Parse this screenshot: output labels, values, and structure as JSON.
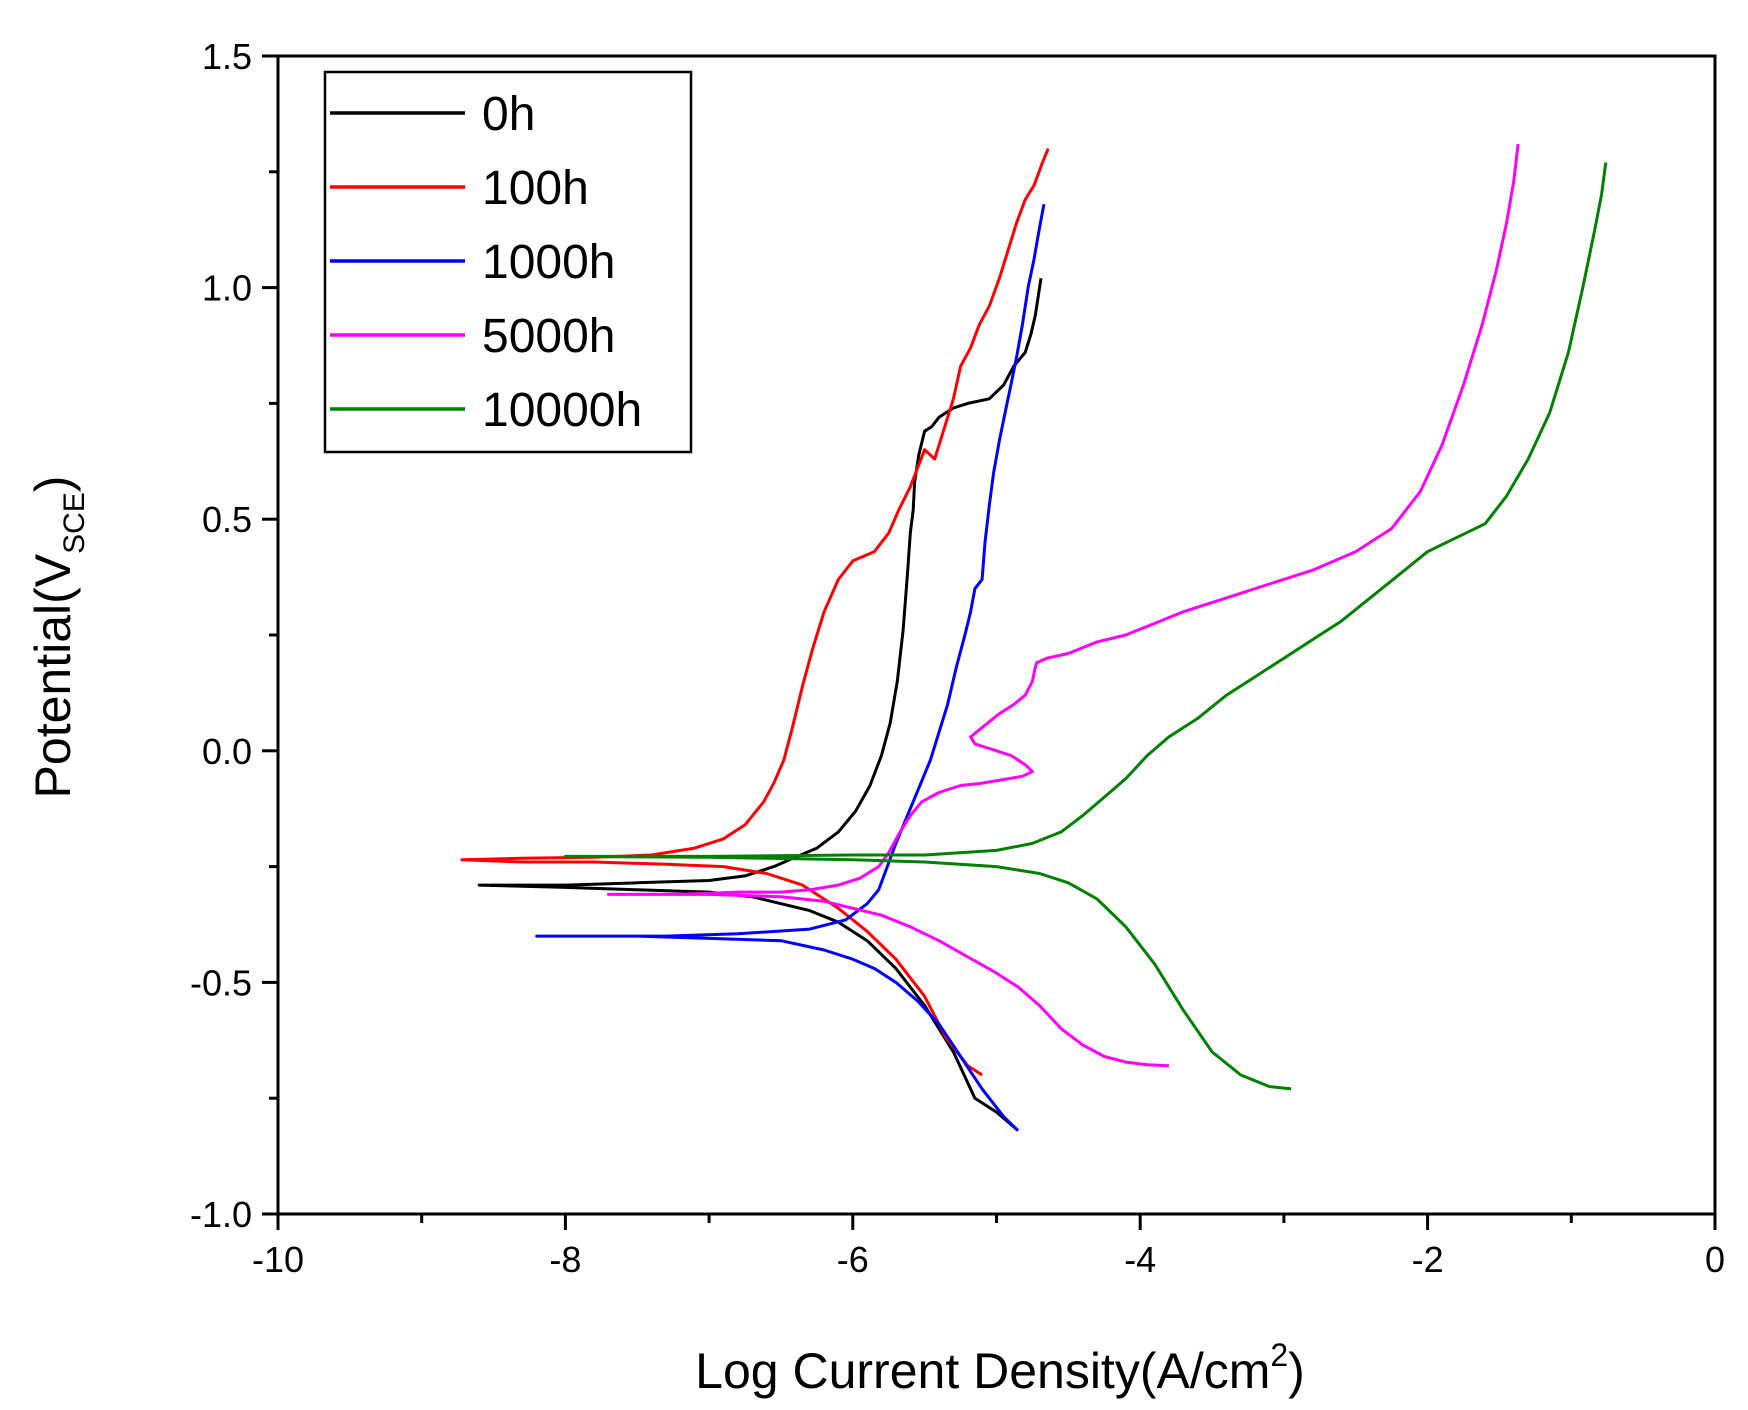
{
  "chart_data": {
    "type": "line",
    "title": "",
    "xlabel": "Log Current Density(A/cm",
    "xlabel_sup": "2",
    "xlabel_end": ")",
    "ylabel": "Potential(V",
    "ylabel_sub": "SCE",
    "ylabel_end": ")",
    "xlim": [
      -10,
      0
    ],
    "ylim": [
      -1.0,
      1.5
    ],
    "xticks": [
      -10,
      -8,
      -6,
      -4,
      -2,
      0
    ],
    "xtick_labels": [
      "-10",
      "-8",
      "-6",
      "-4",
      "-2",
      "0"
    ],
    "xminor": [
      -9,
      -7,
      -5,
      -3,
      -1
    ],
    "yticks": [
      -1.0,
      -0.5,
      0.0,
      0.5,
      1.0,
      1.5
    ],
    "ytick_labels": [
      "-1.0",
      "-0.5",
      "0.0",
      "0.5",
      "1.0",
      "1.5"
    ],
    "legend_position": "top-left",
    "series": [
      {
        "name": "0h",
        "color": "#000000",
        "points": [
          [
            -4.85,
            -0.82
          ],
          [
            -5.0,
            -0.78
          ],
          [
            -5.15,
            -0.75
          ],
          [
            -5.3,
            -0.65
          ],
          [
            -5.5,
            -0.55
          ],
          [
            -5.7,
            -0.47
          ],
          [
            -5.9,
            -0.41
          ],
          [
            -6.1,
            -0.37
          ],
          [
            -6.3,
            -0.345
          ],
          [
            -6.5,
            -0.33
          ],
          [
            -6.7,
            -0.315
          ],
          [
            -7.0,
            -0.305
          ],
          [
            -7.5,
            -0.3
          ],
          [
            -8.0,
            -0.295
          ],
          [
            -8.6,
            -0.29
          ],
          [
            -8.0,
            -0.29
          ],
          [
            -7.5,
            -0.285
          ],
          [
            -7.0,
            -0.28
          ],
          [
            -6.75,
            -0.27
          ],
          [
            -6.55,
            -0.25
          ],
          [
            -6.4,
            -0.23
          ],
          [
            -6.25,
            -0.21
          ],
          [
            -6.1,
            -0.175
          ],
          [
            -5.98,
            -0.13
          ],
          [
            -5.88,
            -0.075
          ],
          [
            -5.8,
            -0.01
          ],
          [
            -5.74,
            0.06
          ],
          [
            -5.69,
            0.15
          ],
          [
            -5.65,
            0.26
          ],
          [
            -5.62,
            0.38
          ],
          [
            -5.6,
            0.47
          ],
          [
            -5.58,
            0.52
          ],
          [
            -5.57,
            0.58
          ],
          [
            -5.54,
            0.64
          ],
          [
            -5.5,
            0.69
          ],
          [
            -5.45,
            0.7
          ],
          [
            -5.4,
            0.72
          ],
          [
            -5.3,
            0.74
          ],
          [
            -5.2,
            0.75
          ],
          [
            -5.05,
            0.76
          ],
          [
            -4.95,
            0.79
          ],
          [
            -4.88,
            0.83
          ],
          [
            -4.8,
            0.86
          ],
          [
            -4.76,
            0.9
          ],
          [
            -4.73,
            0.94
          ],
          [
            -4.69,
            1.02
          ]
        ]
      },
      {
        "name": "100h",
        "color": "#ff0000",
        "points": [
          [
            -5.1,
            -0.7
          ],
          [
            -5.2,
            -0.68
          ],
          [
            -5.35,
            -0.62
          ],
          [
            -5.5,
            -0.53
          ],
          [
            -5.7,
            -0.45
          ],
          [
            -5.9,
            -0.39
          ],
          [
            -6.1,
            -0.34
          ],
          [
            -6.35,
            -0.29
          ],
          [
            -6.6,
            -0.265
          ],
          [
            -6.9,
            -0.25
          ],
          [
            -7.3,
            -0.245
          ],
          [
            -7.8,
            -0.24
          ],
          [
            -8.3,
            -0.24
          ],
          [
            -8.72,
            -0.235
          ],
          [
            -8.3,
            -0.232
          ],
          [
            -7.8,
            -0.23
          ],
          [
            -7.4,
            -0.225
          ],
          [
            -7.1,
            -0.21
          ],
          [
            -6.9,
            -0.19
          ],
          [
            -6.75,
            -0.16
          ],
          [
            -6.62,
            -0.11
          ],
          [
            -6.55,
            -0.07
          ],
          [
            -6.48,
            -0.02
          ],
          [
            -6.42,
            0.05
          ],
          [
            -6.35,
            0.14
          ],
          [
            -6.28,
            0.22
          ],
          [
            -6.2,
            0.3
          ],
          [
            -6.1,
            0.37
          ],
          [
            -6.0,
            0.41
          ],
          [
            -5.85,
            0.43
          ],
          [
            -5.75,
            0.47
          ],
          [
            -5.68,
            0.52
          ],
          [
            -5.6,
            0.57
          ],
          [
            -5.55,
            0.61
          ],
          [
            -5.5,
            0.65
          ],
          [
            -5.43,
            0.63
          ],
          [
            -5.36,
            0.7
          ],
          [
            -5.3,
            0.76
          ],
          [
            -5.25,
            0.83
          ],
          [
            -5.18,
            0.87
          ],
          [
            -5.12,
            0.92
          ],
          [
            -5.05,
            0.96
          ],
          [
            -4.98,
            1.02
          ],
          [
            -4.92,
            1.08
          ],
          [
            -4.86,
            1.14
          ],
          [
            -4.8,
            1.19
          ],
          [
            -4.74,
            1.22
          ],
          [
            -4.68,
            1.27
          ],
          [
            -4.64,
            1.3
          ]
        ]
      },
      {
        "name": "1000h",
        "color": "#0000ff",
        "points": [
          [
            -4.85,
            -0.82
          ],
          [
            -4.95,
            -0.79
          ],
          [
            -5.1,
            -0.73
          ],
          [
            -5.25,
            -0.66
          ],
          [
            -5.4,
            -0.59
          ],
          [
            -5.55,
            -0.54
          ],
          [
            -5.7,
            -0.5
          ],
          [
            -5.85,
            -0.47
          ],
          [
            -6.0,
            -0.45
          ],
          [
            -6.2,
            -0.43
          ],
          [
            -6.5,
            -0.41
          ],
          [
            -7.0,
            -0.405
          ],
          [
            -7.5,
            -0.4
          ],
          [
            -8.0,
            -0.4
          ],
          [
            -8.2,
            -0.4
          ],
          [
            -7.8,
            -0.4
          ],
          [
            -7.3,
            -0.4
          ],
          [
            -6.8,
            -0.395
          ],
          [
            -6.3,
            -0.385
          ],
          [
            -6.05,
            -0.365
          ],
          [
            -5.9,
            -0.33
          ],
          [
            -5.82,
            -0.3
          ],
          [
            -5.76,
            -0.25
          ],
          [
            -5.7,
            -0.2
          ],
          [
            -5.62,
            -0.14
          ],
          [
            -5.54,
            -0.08
          ],
          [
            -5.46,
            -0.02
          ],
          [
            -5.4,
            0.04
          ],
          [
            -5.34,
            0.1
          ],
          [
            -5.28,
            0.18
          ],
          [
            -5.22,
            0.25
          ],
          [
            -5.18,
            0.3
          ],
          [
            -5.15,
            0.35
          ],
          [
            -5.1,
            0.37
          ],
          [
            -5.08,
            0.45
          ],
          [
            -5.05,
            0.53
          ],
          [
            -5.02,
            0.6
          ],
          [
            -4.98,
            0.67
          ],
          [
            -4.94,
            0.73
          ],
          [
            -4.9,
            0.79
          ],
          [
            -4.86,
            0.85
          ],
          [
            -4.82,
            0.92
          ],
          [
            -4.78,
            1.0
          ],
          [
            -4.74,
            1.06
          ],
          [
            -4.7,
            1.13
          ],
          [
            -4.67,
            1.18
          ]
        ]
      },
      {
        "name": "5000h",
        "color": "#ff00ff",
        "points": [
          [
            -3.8,
            -0.68
          ],
          [
            -3.95,
            -0.678
          ],
          [
            -4.1,
            -0.672
          ],
          [
            -4.25,
            -0.66
          ],
          [
            -4.4,
            -0.635
          ],
          [
            -4.55,
            -0.6
          ],
          [
            -4.7,
            -0.55
          ],
          [
            -4.85,
            -0.51
          ],
          [
            -5.0,
            -0.48
          ],
          [
            -5.2,
            -0.445
          ],
          [
            -5.4,
            -0.41
          ],
          [
            -5.6,
            -0.38
          ],
          [
            -5.8,
            -0.355
          ],
          [
            -6.0,
            -0.34
          ],
          [
            -6.2,
            -0.325
          ],
          [
            -6.5,
            -0.315
          ],
          [
            -7.0,
            -0.31
          ],
          [
            -7.7,
            -0.31
          ],
          [
            -7.2,
            -0.31
          ],
          [
            -6.8,
            -0.305
          ],
          [
            -6.5,
            -0.305
          ],
          [
            -6.3,
            -0.3
          ],
          [
            -6.1,
            -0.29
          ],
          [
            -5.95,
            -0.275
          ],
          [
            -5.82,
            -0.25
          ],
          [
            -5.75,
            -0.22
          ],
          [
            -5.68,
            -0.18
          ],
          [
            -5.6,
            -0.14
          ],
          [
            -5.52,
            -0.11
          ],
          [
            -5.4,
            -0.09
          ],
          [
            -5.25,
            -0.075
          ],
          [
            -5.1,
            -0.07
          ],
          [
            -4.95,
            -0.062
          ],
          [
            -4.82,
            -0.055
          ],
          [
            -4.75,
            -0.045
          ],
          [
            -4.8,
            -0.03
          ],
          [
            -4.9,
            -0.01
          ],
          [
            -5.05,
            0.005
          ],
          [
            -5.15,
            0.015
          ],
          [
            -5.18,
            0.03
          ],
          [
            -5.1,
            0.05
          ],
          [
            -4.98,
            0.08
          ],
          [
            -4.88,
            0.1
          ],
          [
            -4.8,
            0.12
          ],
          [
            -4.75,
            0.15
          ],
          [
            -4.73,
            0.18
          ],
          [
            -4.72,
            0.19
          ],
          [
            -4.65,
            0.2
          ],
          [
            -4.5,
            0.21
          ],
          [
            -4.3,
            0.235
          ],
          [
            -4.1,
            0.25
          ],
          [
            -3.9,
            0.275
          ],
          [
            -3.7,
            0.3
          ],
          [
            -3.4,
            0.33
          ],
          [
            -3.1,
            0.36
          ],
          [
            -2.8,
            0.39
          ],
          [
            -2.5,
            0.43
          ],
          [
            -2.25,
            0.48
          ],
          [
            -2.05,
            0.56
          ],
          [
            -1.9,
            0.66
          ],
          [
            -1.75,
            0.79
          ],
          [
            -1.62,
            0.92
          ],
          [
            -1.52,
            1.04
          ],
          [
            -1.45,
            1.14
          ],
          [
            -1.4,
            1.23
          ],
          [
            -1.37,
            1.31
          ]
        ]
      },
      {
        "name": "10000h",
        "color": "#008000",
        "points": [
          [
            -2.95,
            -0.73
          ],
          [
            -3.1,
            -0.725
          ],
          [
            -3.3,
            -0.7
          ],
          [
            -3.5,
            -0.65
          ],
          [
            -3.7,
            -0.56
          ],
          [
            -3.9,
            -0.46
          ],
          [
            -4.1,
            -0.38
          ],
          [
            -4.3,
            -0.32
          ],
          [
            -4.5,
            -0.285
          ],
          [
            -4.7,
            -0.265
          ],
          [
            -5.0,
            -0.25
          ],
          [
            -5.5,
            -0.24
          ],
          [
            -6.0,
            -0.235
          ],
          [
            -7.0,
            -0.23
          ],
          [
            -8.0,
            -0.228
          ],
          [
            -7.0,
            -0.228
          ],
          [
            -6.0,
            -0.225
          ],
          [
            -5.5,
            -0.225
          ],
          [
            -5.0,
            -0.215
          ],
          [
            -4.75,
            -0.2
          ],
          [
            -4.55,
            -0.175
          ],
          [
            -4.4,
            -0.14
          ],
          [
            -4.25,
            -0.1
          ],
          [
            -4.1,
            -0.06
          ],
          [
            -3.95,
            -0.01
          ],
          [
            -3.8,
            0.03
          ],
          [
            -3.6,
            0.07
          ],
          [
            -3.4,
            0.12
          ],
          [
            -3.2,
            0.16
          ],
          [
            -3.0,
            0.2
          ],
          [
            -2.8,
            0.24
          ],
          [
            -2.6,
            0.28
          ],
          [
            -2.4,
            0.33
          ],
          [
            -2.2,
            0.38
          ],
          [
            -2.0,
            0.43
          ],
          [
            -1.8,
            0.46
          ],
          [
            -1.6,
            0.49
          ],
          [
            -1.45,
            0.55
          ],
          [
            -1.3,
            0.63
          ],
          [
            -1.15,
            0.73
          ],
          [
            -1.02,
            0.86
          ],
          [
            -0.92,
            1.0
          ],
          [
            -0.84,
            1.12
          ],
          [
            -0.79,
            1.2
          ],
          [
            -0.76,
            1.27
          ]
        ]
      }
    ]
  }
}
